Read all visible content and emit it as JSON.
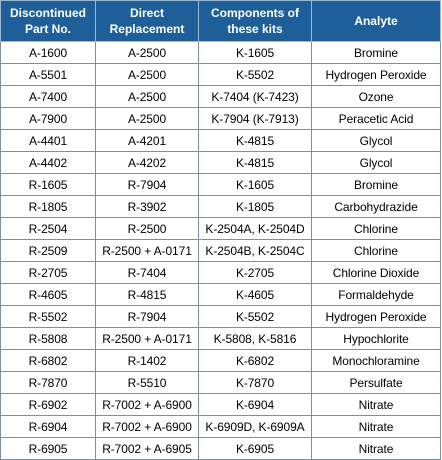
{
  "colors": {
    "header_bg": "#1f5f99",
    "header_text": "#ffffff"
  },
  "table": {
    "headers": [
      [
        "Discontinued",
        "Part No."
      ],
      [
        "Direct",
        "Replacement"
      ],
      [
        "Components of",
        "these kits"
      ],
      [
        "Analyte"
      ]
    ],
    "rows": [
      [
        "A-1600",
        "A-2500",
        "K-1605",
        "Bromine"
      ],
      [
        "A-5501",
        "A-2500",
        "K-5502",
        "Hydrogen Peroxide"
      ],
      [
        "A-7400",
        "A-2500",
        "K-7404 (K-7423)",
        "Ozone"
      ],
      [
        "A-7900",
        "A-2500",
        "K-7904 (K-7913)",
        "Peracetic Acid"
      ],
      [
        "A-4401",
        "A-4201",
        "K-4815",
        "Glycol"
      ],
      [
        "A-4402",
        "A-4202",
        "K-4815",
        "Glycol"
      ],
      [
        "R-1605",
        "R-7904",
        "K-1605",
        "Bromine"
      ],
      [
        "R-1805",
        "R-3902",
        "K-1805",
        "Carbohydrazide"
      ],
      [
        "R-2504",
        "R-2500",
        "K-2504A, K-2504D",
        "Chlorine"
      ],
      [
        "R-2509",
        "R-2500 + A-0171",
        "K-2504B, K-2504C",
        "Chlorine"
      ],
      [
        "R-2705",
        "R-7404",
        "K-2705",
        "Chlorine Dioxide"
      ],
      [
        "R-4605",
        "R-4815",
        "K-4605",
        "Formaldehyde"
      ],
      [
        "R-5502",
        "R-7904",
        "K-5502",
        "Hydrogen Peroxide"
      ],
      [
        "R-5808",
        "R-2500 + A-0171",
        "K-5808, K-5816",
        "Hypochlorite"
      ],
      [
        "R-6802",
        "R-1402",
        "K-6802",
        "Monochloramine"
      ],
      [
        "R-7870",
        "R-5510",
        "K-7870",
        "Persulfate"
      ],
      [
        "R-6902",
        "R-7002 + A-6900",
        "K-6904",
        "Nitrate"
      ],
      [
        "R-6904",
        "R-7002 + A-6900",
        "K-6909D, K-6909A",
        "Nitrate"
      ],
      [
        "R-6905",
        "R-7002 + A-6905",
        "K-6905",
        "Nitrate"
      ]
    ]
  }
}
